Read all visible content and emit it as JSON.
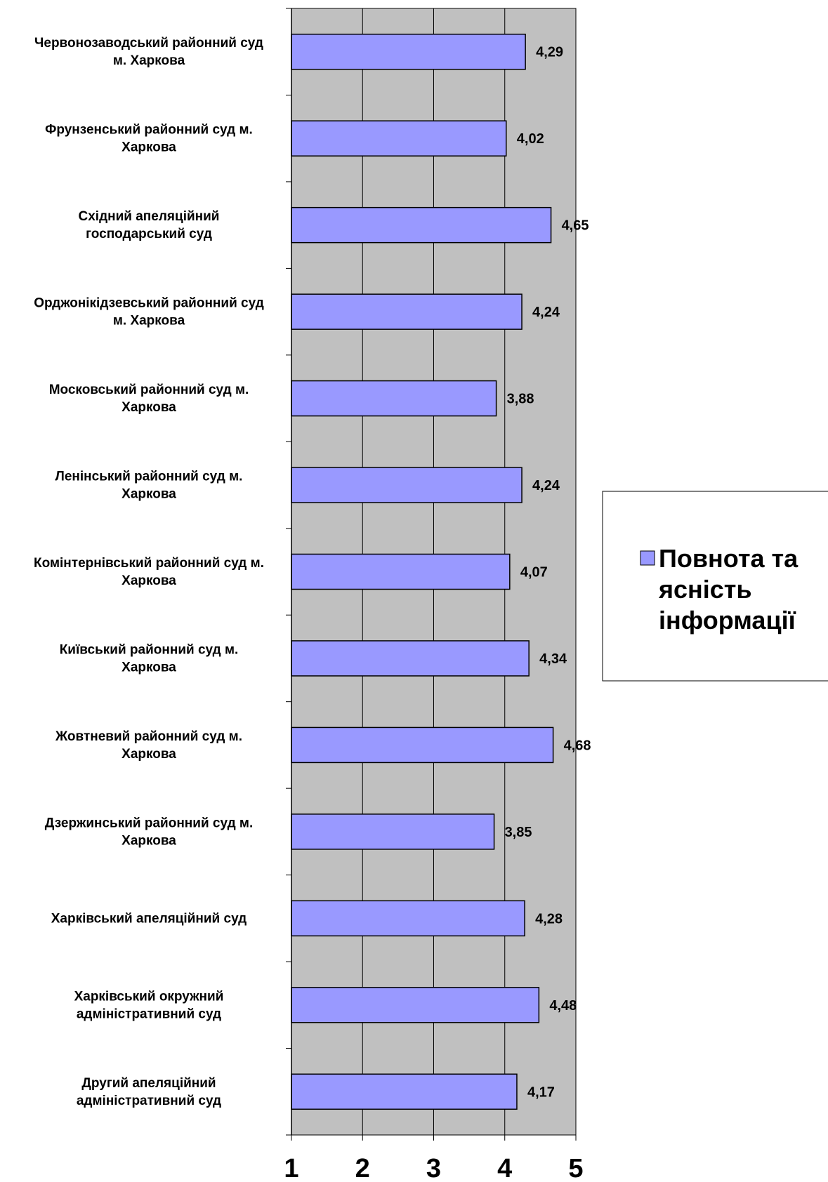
{
  "chart_data": {
    "type": "bar",
    "orientation": "horizontal",
    "categories": [
      [
        "Червонозаводський районний суд",
        "м. Харкова"
      ],
      [
        "Фрунзенський районний суд м.",
        "Харкова"
      ],
      [
        "Східний апеляційний",
        "господарський суд"
      ],
      [
        "Орджонікідзевський районний суд",
        "м. Харкова"
      ],
      [
        "Московський районний суд м.",
        "Харкова"
      ],
      [
        "Ленінський районний суд м.",
        "Харкова"
      ],
      [
        "Комінтернівський районний суд м.",
        "Харкова"
      ],
      [
        "Київський районний суд м.",
        "Харкова"
      ],
      [
        "Жовтневий районний суд м.",
        "Харкова"
      ],
      [
        "Дзержинський районний суд м.",
        "Харкова"
      ],
      [
        "Харківський апеляційний суд"
      ],
      [
        "Харківський окружний",
        "адміністративний суд"
      ],
      [
        "Другий апеляційний",
        "адміністративний суд"
      ]
    ],
    "series": [
      {
        "name": "Повнота та ясність інформації",
        "values": [
          4.29,
          4.02,
          4.65,
          4.24,
          3.88,
          4.24,
          4.07,
          4.34,
          4.68,
          3.85,
          4.28,
          4.48,
          4.17
        ],
        "value_labels": [
          "4,29",
          "4,02",
          "4,65",
          "4,24",
          "3,88",
          "4,24",
          "4,07",
          "4,34",
          "4,68",
          "3,85",
          "4,28",
          "4,48",
          "4,17"
        ],
        "color": "#9999ff"
      }
    ],
    "xlim": [
      1,
      5
    ],
    "xticks": [
      "1",
      "2",
      "3",
      "4",
      "5"
    ],
    "grid": true,
    "plot_background": "#c0c0c0",
    "legend": {
      "position": "right",
      "lines": [
        "Повнота та",
        "ясність",
        "інформації"
      ]
    }
  }
}
